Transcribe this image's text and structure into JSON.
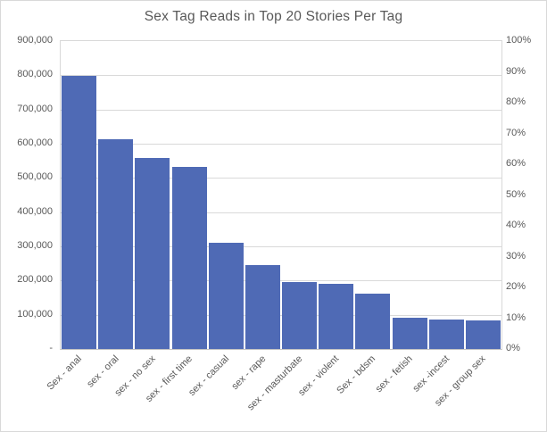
{
  "chart_data": {
    "type": "bar",
    "title": "Sex Tag Reads in Top 20 Stories Per Tag",
    "categories": [
      "Sex - anal",
      "sex - oral",
      "sex - no sex",
      "sex - first time",
      "sex - casual",
      "sex - rape",
      "sex - masturbate",
      "sex - violent",
      "Sex - bdsm",
      "sex - fetish",
      "sex -incest",
      "sex - group sex"
    ],
    "values": [
      797000,
      612000,
      559000,
      533000,
      310000,
      245000,
      196000,
      191000,
      163000,
      92000,
      87000,
      84000
    ],
    "xlabel": "",
    "ylabel": "",
    "ylim_left": [
      0,
      900000
    ],
    "ylim_right_percent": [
      0,
      100
    ],
    "left_axis_tick_labels": [
      "900,000",
      "800,000",
      "700,000",
      "600,000",
      "500,000",
      "400,000",
      "300,000",
      "200,000",
      "100,000",
      "-"
    ],
    "right_axis_tick_labels": [
      "100%",
      "90%",
      "80%",
      "70%",
      "60%",
      "50%",
      "40%",
      "30%",
      "20%",
      "10%",
      "0%"
    ],
    "grid": true,
    "legend": "none",
    "bar_color": "#4f6ab5"
  },
  "colors": {
    "text": "#595959",
    "gridline": "#d9d9d9",
    "axis_line": "#c3c3c3",
    "chart_border": "#d9d9d9",
    "background": "#ffffff"
  }
}
